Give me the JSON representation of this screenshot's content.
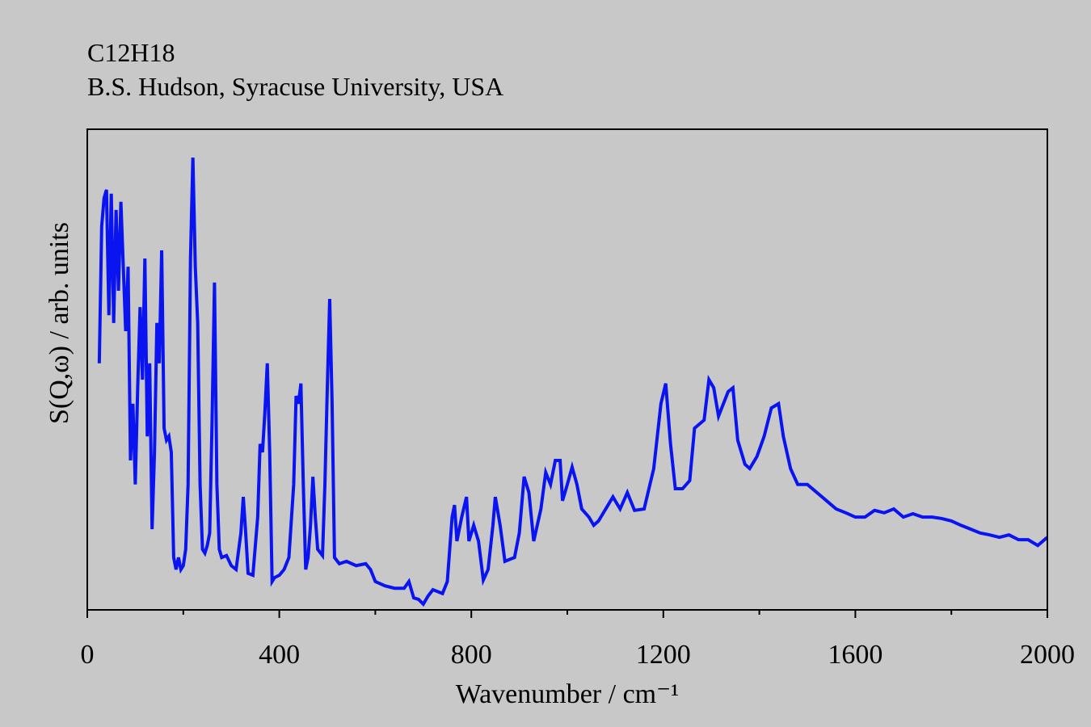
{
  "chart_data": {
    "type": "line",
    "title": "C12H18",
    "subtitle": "B.S. Hudson, Syracuse University, USA",
    "x_label": "Wavenumber / cm⁻¹",
    "y_label": "S(Q,ω) / arb. units",
    "xlim": [
      0,
      2000
    ],
    "xticks": [
      0,
      400,
      800,
      1200,
      1600,
      2000
    ],
    "xminorticks": [
      200,
      600,
      1000,
      1400,
      1800
    ],
    "ylim": [
      0,
      100
    ],
    "x": [
      25,
      30,
      35,
      40,
      45,
      50,
      55,
      60,
      65,
      70,
      75,
      80,
      85,
      90,
      95,
      100,
      105,
      110,
      115,
      120,
      125,
      130,
      135,
      140,
      145,
      150,
      155,
      160,
      165,
      170,
      175,
      180,
      185,
      190,
      195,
      200,
      205,
      210,
      215,
      220,
      225,
      230,
      235,
      240,
      245,
      250,
      255,
      260,
      265,
      270,
      275,
      280,
      290,
      300,
      310,
      320,
      325,
      330,
      335,
      345,
      355,
      360,
      365,
      370,
      375,
      380,
      385,
      390,
      400,
      410,
      420,
      430,
      435,
      440,
      445,
      450,
      455,
      460,
      465,
      470,
      475,
      480,
      490,
      495,
      500,
      505,
      510,
      515,
      525,
      540,
      560,
      580,
      590,
      600,
      620,
      640,
      660,
      670,
      680,
      690,
      700,
      710,
      720,
      740,
      750,
      760,
      765,
      770,
      780,
      790,
      795,
      805,
      815,
      825,
      835,
      845,
      850,
      860,
      870,
      890,
      900,
      910,
      920,
      930,
      945,
      955,
      965,
      975,
      985,
      990,
      1000,
      1010,
      1020,
      1030,
      1045,
      1055,
      1065,
      1080,
      1095,
      1110,
      1125,
      1140,
      1160,
      1180,
      1195,
      1205,
      1215,
      1225,
      1240,
      1255,
      1265,
      1285,
      1295,
      1305,
      1315,
      1335,
      1345,
      1355,
      1370,
      1380,
      1395,
      1410,
      1425,
      1440,
      1450,
      1465,
      1480,
      1500,
      1520,
      1540,
      1560,
      1580,
      1600,
      1620,
      1640,
      1660,
      1680,
      1700,
      1720,
      1740,
      1760,
      1780,
      1800,
      1820,
      1840,
      1860,
      1880,
      1900,
      1920,
      1940,
      1960,
      1980,
      2000
    ],
    "series": [
      {
        "name": "C12H18",
        "color": "#0a14f0",
        "values": [
          51.3,
          79.8,
          85.7,
          87.4,
          61.3,
          86.6,
          59.7,
          83.2,
          66.4,
          84.9,
          71.4,
          58.0,
          71.4,
          31.1,
          42.9,
          26.1,
          46.2,
          63.0,
          47.9,
          73.1,
          36.1,
          51.3,
          16.8,
          32.8,
          59.7,
          51.3,
          74.8,
          37.8,
          35.3,
          36.1,
          32.8,
          10.9,
          8.4,
          10.9,
          8.4,
          9.2,
          12.6,
          26.1,
          73.1,
          94.1,
          71.4,
          59.7,
          26.1,
          12.6,
          11.8,
          13.4,
          16.0,
          39.5,
          68.1,
          26.1,
          12.6,
          10.9,
          11.3,
          9.2,
          8.4,
          16.0,
          23.5,
          16.0,
          7.6,
          7.2,
          19.3,
          34.5,
          32.8,
          41.2,
          51.3,
          32.8,
          5.9,
          6.7,
          7.2,
          8.4,
          10.9,
          26.1,
          44.5,
          42.9,
          47.1,
          26.1,
          8.4,
          10.9,
          17.6,
          27.7,
          19.3,
          12.6,
          11.3,
          26.1,
          46.2,
          64.7,
          42.9,
          10.9,
          9.6,
          10.1,
          9.2,
          9.6,
          8.4,
          5.9,
          5.0,
          4.5,
          4.5,
          5.9,
          2.5,
          2.2,
          1.2,
          2.9,
          4.2,
          3.4,
          5.9,
          19.3,
          21.8,
          14.3,
          19.3,
          23.5,
          14.3,
          17.6,
          14.3,
          6.2,
          8.4,
          17.6,
          23.5,
          17.6,
          10.1,
          10.9,
          16.0,
          27.7,
          24.4,
          14.3,
          21.0,
          28.6,
          26.1,
          31.1,
          31.1,
          22.7,
          26.1,
          29.7,
          26.1,
          21.0,
          19.3,
          17.6,
          18.5,
          21.0,
          23.5,
          21.0,
          24.4,
          20.7,
          21.0,
          29.4,
          42.9,
          47.1,
          34.5,
          25.2,
          25.2,
          26.9,
          37.8,
          39.5,
          47.9,
          46.2,
          40.3,
          45.4,
          46.2,
          35.3,
          30.3,
          29.4,
          31.9,
          36.1,
          42.0,
          42.9,
          36.1,
          29.4,
          26.1,
          26.1,
          24.4,
          22.7,
          21.0,
          20.2,
          19.3,
          19.3,
          20.7,
          20.2,
          21.0,
          19.3,
          20.0,
          19.3,
          19.3,
          19.0,
          18.5,
          17.6,
          16.8,
          16.0,
          15.6,
          15.1,
          15.6,
          14.6,
          14.6,
          13.4,
          15.1
        ]
      }
    ]
  }
}
